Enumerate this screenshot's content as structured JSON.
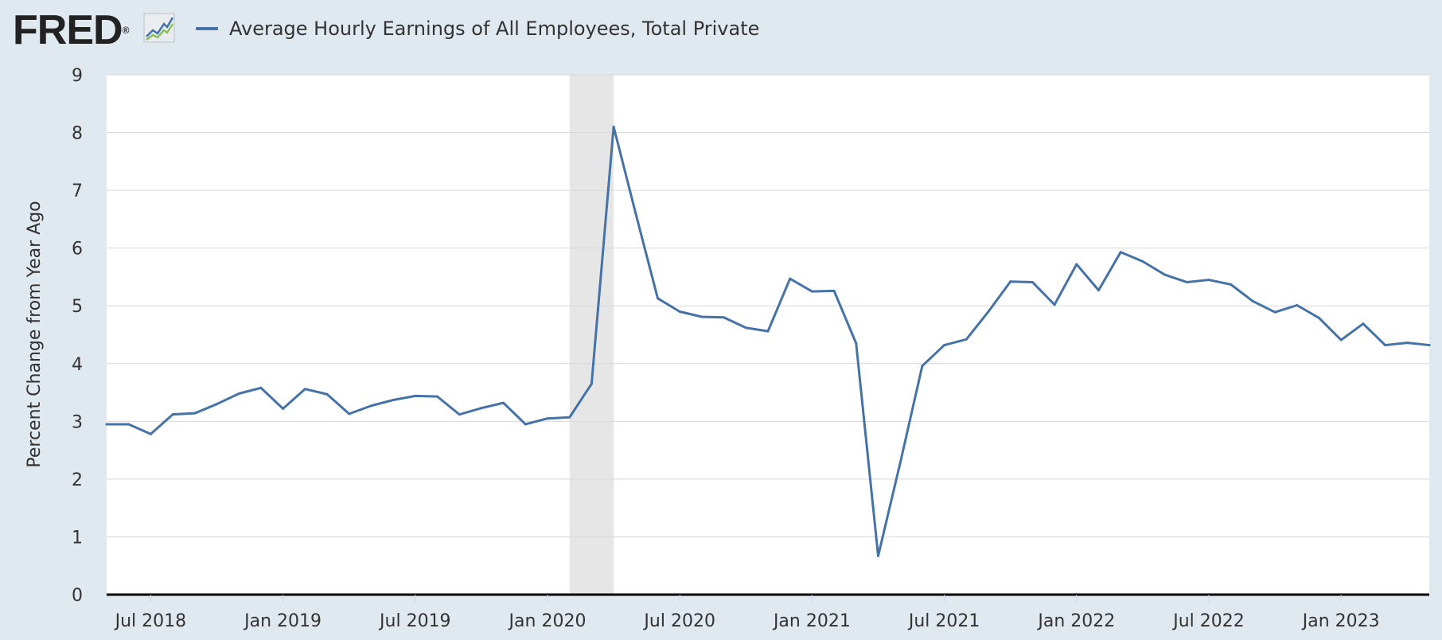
{
  "header": {
    "logo_text": "FRED",
    "logo_mark": "®",
    "logo_icon": "line-chart-icon"
  },
  "colors": {
    "background": "#e1e9f0",
    "plot_background": "#ffffff",
    "series_line": "#4572a7",
    "recession_band": "#e6e6e6",
    "gridline": "#d8d8d8",
    "axis_line": "#000000",
    "text": "#333333"
  },
  "chart_data": {
    "type": "line",
    "title": "",
    "ylabel": "Percent Change from Year Ago",
    "xlabel": "",
    "ylim": [
      0,
      9
    ],
    "yticks": [
      0,
      1,
      2,
      3,
      4,
      5,
      6,
      7,
      8,
      9
    ],
    "grid": true,
    "legend_position": "top-left",
    "x_range": [
      "2018-05",
      "2023-05"
    ],
    "xticks": [
      {
        "date": "2018-07",
        "label": "Jul 2018"
      },
      {
        "date": "2019-01",
        "label": "Jan 2019"
      },
      {
        "date": "2019-07",
        "label": "Jul 2019"
      },
      {
        "date": "2020-01",
        "label": "Jan 2020"
      },
      {
        "date": "2020-07",
        "label": "Jul 2020"
      },
      {
        "date": "2021-01",
        "label": "Jan 2021"
      },
      {
        "date": "2021-07",
        "label": "Jul 2021"
      },
      {
        "date": "2022-01",
        "label": "Jan 2022"
      },
      {
        "date": "2022-07",
        "label": "Jul 2022"
      },
      {
        "date": "2023-01",
        "label": "Jan 2023"
      }
    ],
    "recession_shading": [
      {
        "start": "2020-02",
        "end": "2020-04"
      }
    ],
    "series": [
      {
        "name": "Average Hourly Earnings of All Employees, Total Private",
        "start": "2018-05",
        "frequency": "monthly",
        "values": [
          2.95,
          2.95,
          2.78,
          3.12,
          3.14,
          3.3,
          3.48,
          3.58,
          3.22,
          3.56,
          3.47,
          3.13,
          3.27,
          3.37,
          3.44,
          3.43,
          3.12,
          3.23,
          3.32,
          2.95,
          3.05,
          3.07,
          3.65,
          8.1,
          6.6,
          5.13,
          4.9,
          4.81,
          4.8,
          4.62,
          4.56,
          5.47,
          5.25,
          5.26,
          4.35,
          0.67,
          2.28,
          3.96,
          4.32,
          4.42,
          4.9,
          5.42,
          5.41,
          5.02,
          5.72,
          5.27,
          5.93,
          5.77,
          5.54,
          5.41,
          5.45,
          5.37,
          5.08,
          4.89,
          5.01,
          4.79,
          4.41,
          4.69,
          4.32,
          4.36,
          4.32
        ]
      }
    ]
  }
}
